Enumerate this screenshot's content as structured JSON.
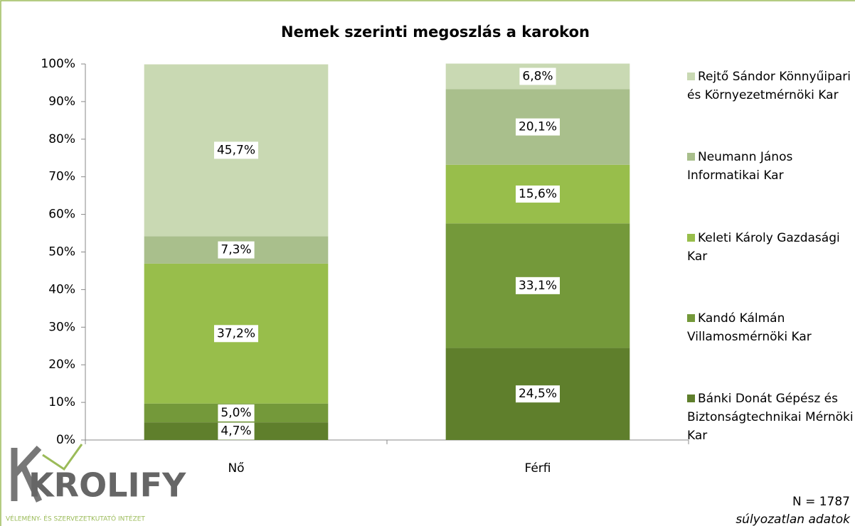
{
  "chart_data": {
    "type": "stacked_bar",
    "title": "Nemek szerinti megoszlás a karokon",
    "categories": [
      "Nő",
      "Férfi"
    ],
    "series": [
      {
        "name": "Bánki Donát Gépész és Biztonságtechnikai Mérnöki Kar",
        "color": "#5f7f2c",
        "values": [
          4.7,
          24.5
        ],
        "value_labels": [
          "4,7%",
          "24,5%"
        ]
      },
      {
        "name": "Kandó Kálmán Villamosmérnöki Kar",
        "color": "#74993a",
        "values": [
          5.0,
          33.1
        ],
        "value_labels": [
          "5,0%",
          "33,1%"
        ]
      },
      {
        "name": "Keleti Károly Gazdasági Kar",
        "color": "#98be4b",
        "values": [
          37.2,
          15.6
        ],
        "value_labels": [
          "37,2%",
          "15,6%"
        ]
      },
      {
        "name": "Neumann János Informatikai Kar",
        "color": "#a9bf8c",
        "values": [
          7.3,
          20.1
        ],
        "value_labels": [
          "7,3%",
          "20,1%"
        ]
      },
      {
        "name": "Rejtő Sándor Könnyűipari és Környezetmérnöki Kar",
        "color": "#c9d9b3",
        "values": [
          45.7,
          6.8
        ],
        "value_labels": [
          "45,7%",
          "6,8%"
        ]
      }
    ],
    "ylim": [
      0,
      100
    ],
    "yticks": [
      {
        "value": 0,
        "label": "0%"
      },
      {
        "value": 10,
        "label": "10%"
      },
      {
        "value": 20,
        "label": "20%"
      },
      {
        "value": 30,
        "label": "30%"
      },
      {
        "value": 40,
        "label": "40%"
      },
      {
        "value": 50,
        "label": "50%"
      },
      {
        "value": 60,
        "label": "60%"
      },
      {
        "value": 70,
        "label": "70%"
      },
      {
        "value": 80,
        "label": "80%"
      },
      {
        "value": 90,
        "label": "90%"
      },
      {
        "value": 100,
        "label": "100%"
      }
    ],
    "legend": "right",
    "notes": [
      "N = 1787",
      "súlyozatlan adatok"
    ]
  },
  "logo": {
    "name": "KROLIFY",
    "tagline": "VÉLEMÉNY- ÉS SZERVEZETKUTATÓ INTÉZET"
  }
}
